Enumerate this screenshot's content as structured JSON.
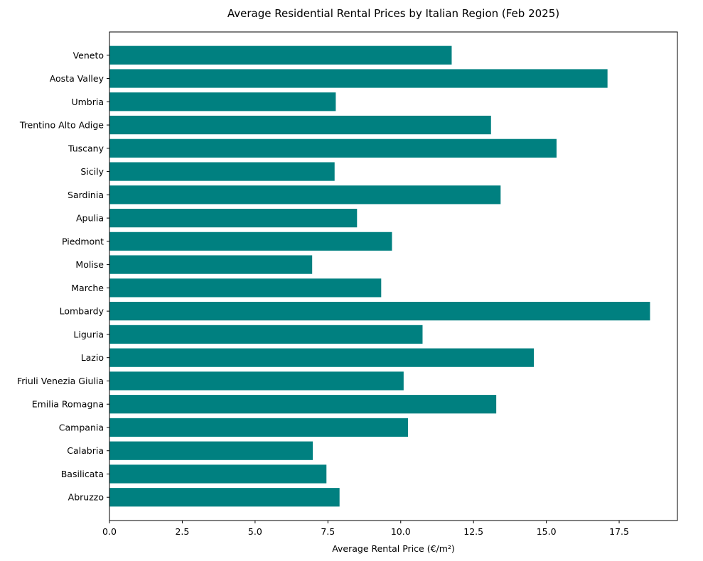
{
  "chart_data": {
    "type": "bar",
    "orientation": "horizontal",
    "title": "Average Residential Rental Prices by Italian Region (Feb 2025)",
    "xlabel": "Average Rental Price (€/m²)",
    "ylabel": "",
    "xlim": [
      0,
      19.5
    ],
    "xticks": [
      "0.0",
      "2.5",
      "5.0",
      "7.5",
      "10.0",
      "12.5",
      "15.0",
      "17.5"
    ],
    "bar_color": "#008080",
    "grid": false,
    "categories": [
      "Abruzzo",
      "Basilicata",
      "Calabria",
      "Campania",
      "Emilia Romagna",
      "Friuli Venezia Giulia",
      "Lazio",
      "Liguria",
      "Lombardy",
      "Marche",
      "Molise",
      "Piedmont",
      "Apulia",
      "Sardinia",
      "Sicily",
      "Tuscany",
      "Trentino Alto Adige",
      "Umbria",
      "Aosta Valley",
      "Veneto"
    ],
    "values": [
      7.9,
      7.45,
      6.98,
      10.25,
      13.28,
      10.1,
      14.57,
      10.75,
      18.56,
      9.33,
      6.96,
      9.7,
      8.5,
      13.43,
      7.73,
      15.35,
      13.1,
      7.77,
      17.1,
      11.75
    ]
  }
}
